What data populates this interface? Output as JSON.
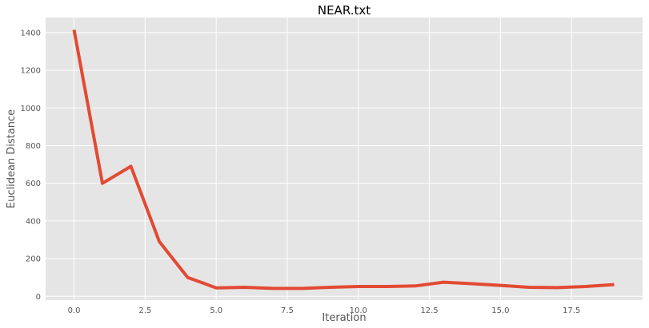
{
  "chart_data": {
    "type": "line",
    "title": "NEAR.txt",
    "xlabel": "Iteration",
    "ylabel": "Euclidean Distance",
    "xlim": [
      -1,
      20
    ],
    "ylim": [
      -20,
      1480
    ],
    "xticks": [
      0.0,
      2.5,
      5.0,
      7.5,
      10.0,
      12.5,
      15.0,
      17.5
    ],
    "xtick_labels": [
      "0.0",
      "2.5",
      "5.0",
      "7.5",
      "10.0",
      "12.5",
      "15.0",
      "17.5"
    ],
    "yticks": [
      0,
      200,
      400,
      600,
      800,
      1000,
      1200,
      1400
    ],
    "ytick_labels": [
      "0",
      "200",
      "400",
      "600",
      "800",
      "1000",
      "1200",
      "1400"
    ],
    "grid": true,
    "series": [
      {
        "color": "#e24a33",
        "x": [
          0,
          1,
          2,
          3,
          4,
          5,
          6,
          7,
          8,
          9,
          10,
          11,
          12,
          13,
          14,
          15,
          16,
          17,
          18,
          19
        ],
        "y": [
          1415,
          600,
          690,
          290,
          100,
          45,
          48,
          42,
          42,
          48,
          52,
          52,
          55,
          75,
          67,
          58,
          48,
          46,
          52,
          62
        ]
      }
    ]
  }
}
